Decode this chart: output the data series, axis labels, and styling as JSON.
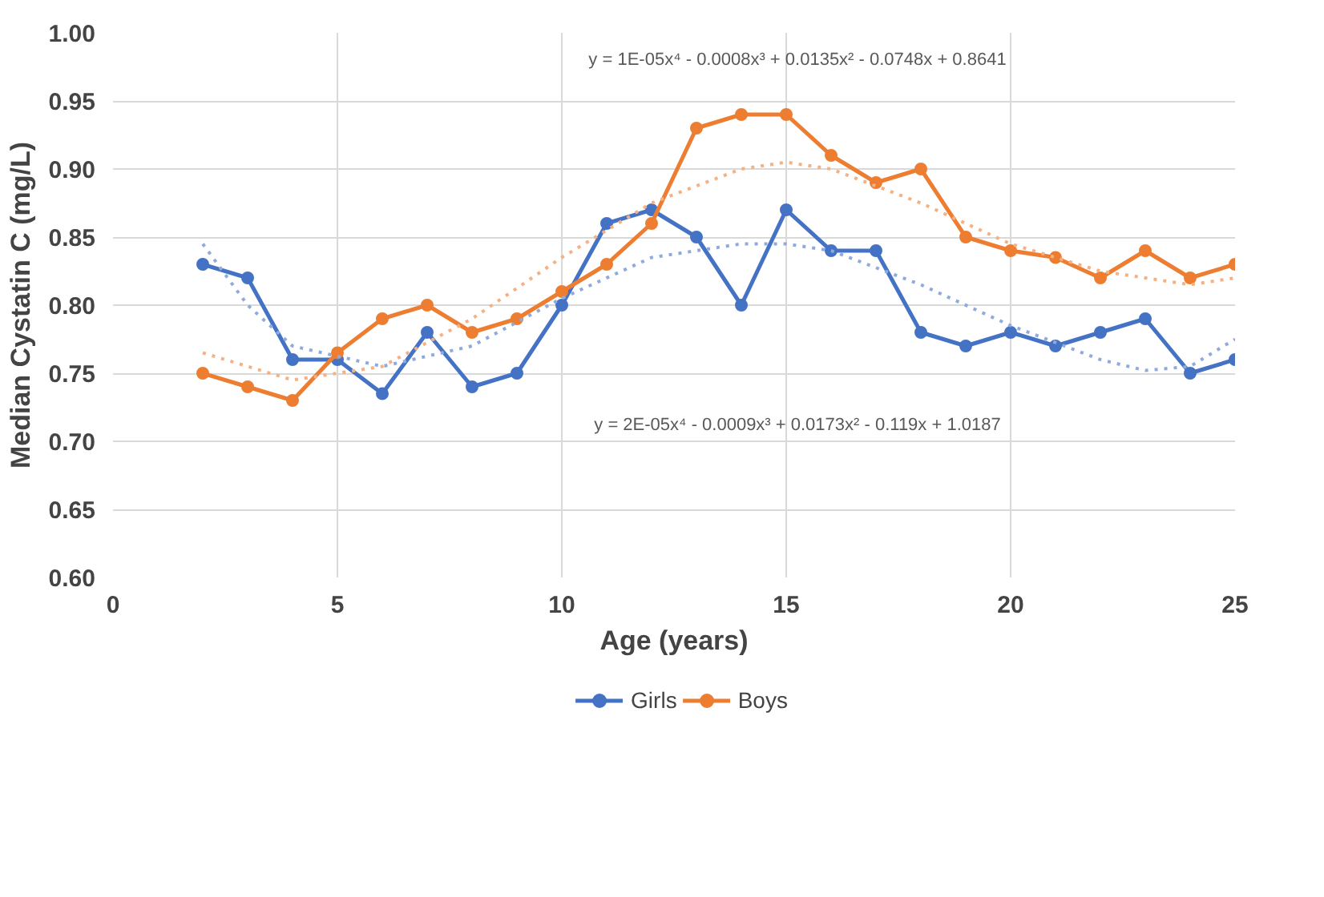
{
  "chart_data": {
    "type": "line",
    "xlabel": "Age (years)",
    "ylabel": "Median Cystatin C (mg/L)",
    "xlim": [
      0,
      25
    ],
    "xticks": [
      0,
      5,
      10,
      15,
      20,
      25
    ],
    "ylim": [
      0.6,
      1.0
    ],
    "yticks": [
      {
        "value": 0.6,
        "label": "0.60"
      },
      {
        "value": 0.65,
        "label": "0.65"
      },
      {
        "value": 0.7,
        "label": "0.70"
      },
      {
        "value": 0.75,
        "label": "0.75"
      },
      {
        "value": 0.8,
        "label": "0.80"
      },
      {
        "value": 0.85,
        "label": "0.85"
      },
      {
        "value": 0.9,
        "label": "0.90"
      },
      {
        "value": 0.95,
        "label": "0.95"
      },
      {
        "value": 1.0,
        "label": "1.00"
      }
    ],
    "grid": true,
    "legend": "bottom",
    "marker": "circle",
    "line_style": "solid",
    "x": [
      2,
      3,
      4,
      5,
      6,
      7,
      8,
      9,
      10,
      11,
      12,
      13,
      14,
      15,
      16,
      17,
      18,
      19,
      20,
      21,
      22,
      23,
      24,
      25
    ],
    "series": [
      {
        "name": "Girls",
        "color": "#4472c4",
        "values": [
          0.83,
          0.82,
          0.76,
          0.76,
          0.735,
          0.78,
          0.74,
          0.75,
          0.8,
          0.86,
          0.87,
          0.85,
          0.8,
          0.87,
          0.84,
          0.84,
          0.78,
          0.77,
          0.78,
          0.77,
          0.78,
          0.79,
          0.75,
          0.76
        ]
      },
      {
        "name": "Boys",
        "color": "#ed7d31",
        "values": [
          0.75,
          0.74,
          0.73,
          0.765,
          0.79,
          0.8,
          0.78,
          0.79,
          0.81,
          0.83,
          0.86,
          0.93,
          0.94,
          0.94,
          0.91,
          0.89,
          0.9,
          0.85,
          0.84,
          0.835,
          0.82,
          0.84,
          0.82,
          0.83
        ]
      },
      {
        "color": "#f4b183",
        "marker": "none",
        "line_style": "dotted",
        "x": [
          2,
          4,
          6,
          8,
          10,
          12,
          14,
          15,
          16,
          18,
          20,
          22,
          24,
          25
        ],
        "values": [
          0.765,
          0.745,
          0.755,
          0.79,
          0.835,
          0.875,
          0.9,
          0.905,
          0.9,
          0.875,
          0.845,
          0.825,
          0.815,
          0.82
        ]
      },
      {
        "color": "#8faadc",
        "marker": "none",
        "line_style": "dotted",
        "x": [
          2,
          3,
          4,
          6,
          8,
          10,
          12,
          14,
          15,
          16,
          18,
          20,
          22,
          23,
          24,
          25
        ],
        "values": [
          0.845,
          0.8,
          0.77,
          0.755,
          0.77,
          0.805,
          0.835,
          0.845,
          0.845,
          0.84,
          0.815,
          0.785,
          0.76,
          0.752,
          0.755,
          0.775
        ]
      }
    ],
    "annotations": [
      "y = 1E-05x⁴ - 0.0008x³ + 0.0135x² - 0.0748x + 0.8641",
      "y = 2E-05x⁴ - 0.0009x³ + 0.0173x² - 0.119x + 1.0187"
    ]
  }
}
